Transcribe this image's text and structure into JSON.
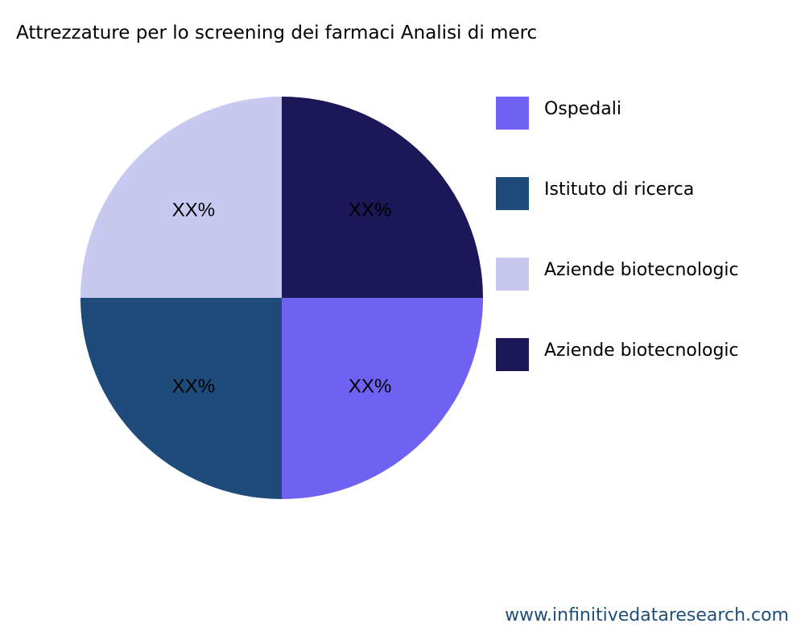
{
  "chart_data": {
    "type": "pie",
    "title": "Attrezzature per lo screening dei farmaci Analisi di merc",
    "categories": [
      "Ospedali",
      "Istituto di ricerca",
      "Aziende biotecnologic",
      "Aziende biotecnologic"
    ],
    "values": [
      25,
      25,
      25,
      25
    ],
    "data_labels": [
      "XX%",
      "XX%",
      "XX%",
      "XX%"
    ],
    "colors": [
      "#6f61f2",
      "#1f4b7a",
      "#c8c9f0",
      "#1c1757"
    ],
    "legend_placement": "right"
  },
  "footer": "www.infinitivedataresearch.com"
}
